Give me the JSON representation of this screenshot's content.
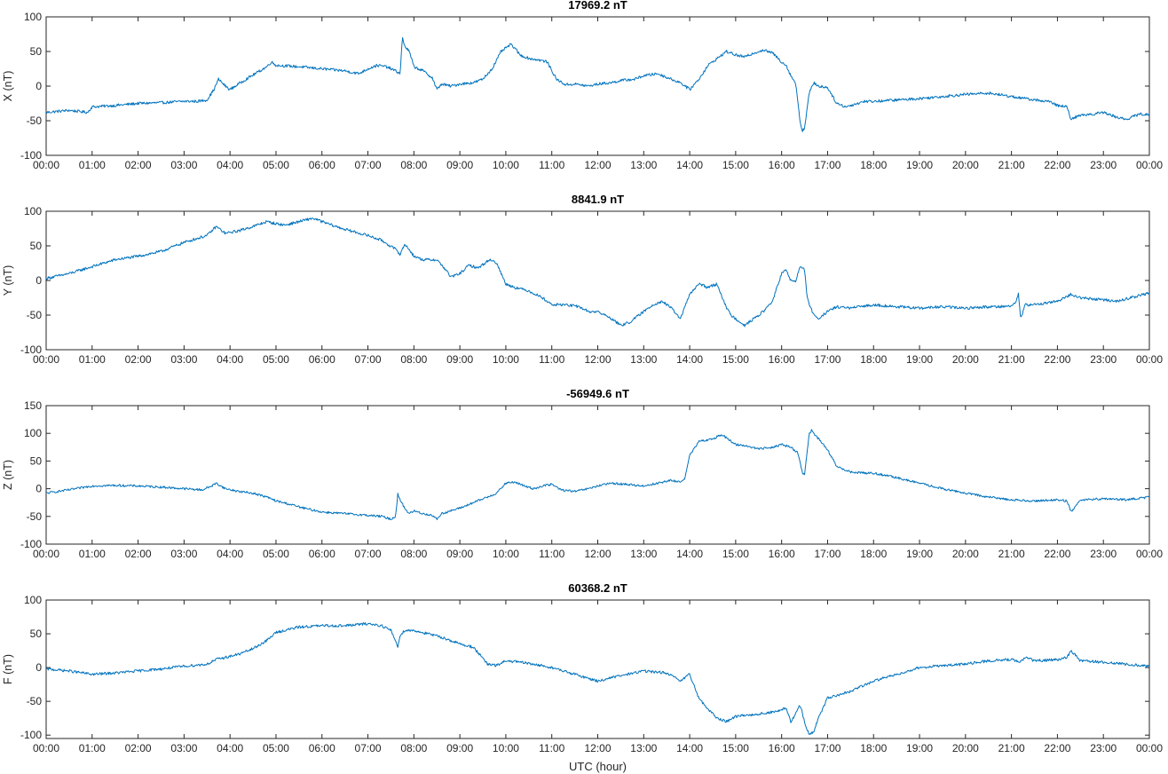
{
  "chart_data": [
    {
      "type": "line",
      "title": "17969.2 nT",
      "ylabel": "X (nT)",
      "xlabel": "",
      "xlim": [
        0,
        24
      ],
      "ylim": [
        -100,
        100
      ],
      "yticks": [
        -100,
        -50,
        0,
        50,
        100
      ],
      "xtick_labels": [
        "00:00",
        "01:00",
        "02:00",
        "03:00",
        "04:00",
        "05:00",
        "06:00",
        "07:00",
        "08:00",
        "09:00",
        "10:00",
        "11:00",
        "12:00",
        "13:00",
        "14:00",
        "15:00",
        "16:00",
        "17:00",
        "18:00",
        "19:00",
        "20:00",
        "21:00",
        "22:00",
        "23:00",
        "00:00"
      ],
      "color": "#0072BD",
      "series": [
        {
          "x": [
            0,
            0.5,
            0.9,
            1.0,
            1.5,
            2.0,
            2.5,
            3.0,
            3.3,
            3.5,
            3.65,
            3.75,
            3.9,
            4.0,
            4.3,
            4.6,
            4.8,
            4.9,
            5.0,
            5.5,
            6.0,
            6.5,
            6.8,
            7.0,
            7.2,
            7.4,
            7.6,
            7.7,
            7.75,
            7.8,
            7.9,
            8.0,
            8.2,
            8.4,
            8.5,
            8.6,
            8.8,
            9.0,
            9.3,
            9.5,
            9.7,
            9.9,
            10.1,
            10.2,
            10.3,
            10.5,
            10.7,
            10.9,
            11.1,
            11.3,
            11.5,
            11.8,
            12.0,
            12.3,
            12.5,
            12.8,
            13.0,
            13.3,
            13.6,
            13.8,
            14.0,
            14.2,
            14.4,
            14.6,
            14.8,
            15.0,
            15.2,
            15.4,
            15.6,
            15.8,
            16.0,
            16.1,
            16.2,
            16.3,
            16.35,
            16.4,
            16.45,
            16.5,
            16.6,
            16.7,
            16.8,
            17.0,
            17.2,
            17.4,
            17.5,
            17.8,
            18.0,
            18.5,
            19.0,
            19.5,
            20.0,
            20.5,
            21.0,
            21.3,
            21.5,
            21.8,
            22.0,
            22.2,
            22.3,
            22.5,
            22.8,
            23.0,
            23.3,
            23.5,
            23.8,
            24.0
          ],
          "y": [
            -38,
            -35,
            -38,
            -30,
            -28,
            -25,
            -24,
            -22,
            -22,
            -20,
            -5,
            10,
            0,
            -5,
            8,
            20,
            28,
            35,
            30,
            28,
            25,
            22,
            18,
            25,
            30,
            28,
            22,
            18,
            70,
            58,
            50,
            28,
            22,
            12,
            -5,
            3,
            0,
            3,
            5,
            10,
            25,
            50,
            60,
            55,
            45,
            40,
            38,
            35,
            10,
            2,
            3,
            0,
            3,
            5,
            8,
            10,
            15,
            18,
            10,
            5,
            -5,
            10,
            30,
            40,
            50,
            45,
            42,
            48,
            52,
            48,
            35,
            30,
            15,
            5,
            -20,
            -50,
            -65,
            -60,
            -10,
            5,
            0,
            -2,
            -25,
            -30,
            -28,
            -22,
            -22,
            -20,
            -18,
            -15,
            -12,
            -10,
            -15,
            -18,
            -20,
            -22,
            -28,
            -30,
            -48,
            -42,
            -40,
            -38,
            -45,
            -48,
            -40,
            -42
          ]
        }
      ]
    },
    {
      "type": "line",
      "title": "8841.9 nT",
      "ylabel": "Y (nT)",
      "xlabel": "",
      "xlim": [
        0,
        24
      ],
      "ylim": [
        -100,
        100
      ],
      "yticks": [
        -100,
        -50,
        0,
        50,
        100
      ],
      "xtick_labels": [
        "00:00",
        "01:00",
        "02:00",
        "03:00",
        "04:00",
        "05:00",
        "06:00",
        "07:00",
        "08:00",
        "09:00",
        "10:00",
        "11:00",
        "12:00",
        "13:00",
        "14:00",
        "15:00",
        "16:00",
        "17:00",
        "18:00",
        "19:00",
        "20:00",
        "21:00",
        "22:00",
        "23:00",
        "00:00"
      ],
      "color": "#0072BD",
      "series": [
        {
          "x": [
            0,
            0.5,
            1.0,
            1.5,
            2.0,
            2.5,
            3.0,
            3.5,
            3.7,
            3.9,
            4.2,
            4.5,
            4.8,
            5.0,
            5.2,
            5.5,
            5.8,
            6.0,
            6.3,
            6.6,
            7.0,
            7.3,
            7.6,
            7.7,
            7.8,
            7.9,
            8.0,
            8.2,
            8.5,
            8.7,
            8.8,
            9.0,
            9.2,
            9.4,
            9.6,
            9.7,
            9.8,
            10.0,
            10.2,
            10.5,
            10.8,
            11.0,
            11.3,
            11.6,
            11.8,
            12.0,
            12.3,
            12.5,
            12.7,
            13.0,
            13.2,
            13.4,
            13.6,
            13.8,
            14.0,
            14.2,
            14.4,
            14.6,
            14.8,
            14.9,
            15.0,
            15.2,
            15.4,
            15.6,
            15.8,
            16.0,
            16.1,
            16.2,
            16.3,
            16.4,
            16.5,
            16.55,
            16.6,
            16.7,
            16.8,
            17.0,
            17.2,
            17.5,
            18.0,
            18.5,
            19.0,
            19.5,
            20.0,
            20.5,
            21.0,
            21.1,
            21.15,
            21.2,
            21.3,
            21.5,
            22.0,
            22.3,
            22.5,
            23.0,
            23.3,
            23.6,
            24.0
          ],
          "y": [
            3,
            10,
            20,
            30,
            35,
            42,
            55,
            65,
            78,
            68,
            72,
            78,
            85,
            82,
            80,
            85,
            90,
            85,
            78,
            72,
            65,
            58,
            45,
            38,
            52,
            45,
            35,
            30,
            30,
            15,
            5,
            10,
            22,
            18,
            28,
            30,
            25,
            -5,
            -10,
            -15,
            -25,
            -35,
            -35,
            -38,
            -45,
            -45,
            -55,
            -65,
            -60,
            -45,
            -35,
            -30,
            -40,
            -55,
            -20,
            -5,
            -10,
            -5,
            -40,
            -50,
            -55,
            -65,
            -55,
            -45,
            -30,
            10,
            15,
            0,
            -2,
            20,
            15,
            -20,
            -35,
            -50,
            -55,
            -45,
            -38,
            -40,
            -35,
            -38,
            -40,
            -38,
            -40,
            -38,
            -37,
            -30,
            -20,
            -55,
            -35,
            -35,
            -30,
            -20,
            -25,
            -28,
            -30,
            -25,
            -18
          ]
        }
      ]
    },
    {
      "type": "line",
      "title": "-56949.6 nT",
      "ylabel": "Z (nT)",
      "xlabel": "",
      "xlim": [
        0,
        24
      ],
      "ylim": [
        -100,
        150
      ],
      "yticks": [
        -100,
        -50,
        0,
        50,
        100,
        150
      ],
      "xtick_labels": [
        "00:00",
        "01:00",
        "02:00",
        "03:00",
        "04:00",
        "05:00",
        "06:00",
        "07:00",
        "08:00",
        "09:00",
        "10:00",
        "11:00",
        "12:00",
        "13:00",
        "14:00",
        "15:00",
        "16:00",
        "17:00",
        "18:00",
        "19:00",
        "20:00",
        "21:00",
        "22:00",
        "23:00",
        "00:00"
      ],
      "color": "#0072BD",
      "series": [
        {
          "x": [
            0,
            0.5,
            1.0,
            1.5,
            2.0,
            2.5,
            3.0,
            3.4,
            3.6,
            3.7,
            3.9,
            4.2,
            4.5,
            4.8,
            5.0,
            5.3,
            5.6,
            6.0,
            6.5,
            7.0,
            7.3,
            7.5,
            7.6,
            7.65,
            7.7,
            7.8,
            7.9,
            8.0,
            8.2,
            8.4,
            8.5,
            8.6,
            8.8,
            9.0,
            9.3,
            9.6,
            9.8,
            10.0,
            10.2,
            10.4,
            10.6,
            10.8,
            11.0,
            11.2,
            11.5,
            11.8,
            12.0,
            12.3,
            12.6,
            13.0,
            13.3,
            13.6,
            13.8,
            13.9,
            14.0,
            14.2,
            14.5,
            14.7,
            14.9,
            15.0,
            15.2,
            15.5,
            15.8,
            16.0,
            16.2,
            16.35,
            16.45,
            16.5,
            16.6,
            16.65,
            16.7,
            16.8,
            17.0,
            17.2,
            17.5,
            18.0,
            18.5,
            19.0,
            19.5,
            20.0,
            20.5,
            21.0,
            21.5,
            22.0,
            22.2,
            22.3,
            22.5,
            23.0,
            23.5,
            24.0
          ],
          "y": [
            -8,
            -2,
            5,
            6,
            5,
            3,
            0,
            -2,
            5,
            10,
            0,
            -5,
            -8,
            -15,
            -22,
            -28,
            -35,
            -42,
            -45,
            -48,
            -50,
            -55,
            -50,
            -10,
            -20,
            -35,
            -45,
            -40,
            -45,
            -48,
            -55,
            -45,
            -40,
            -35,
            -25,
            -15,
            -8,
            10,
            12,
            5,
            0,
            5,
            8,
            -2,
            -5,
            0,
            5,
            10,
            8,
            5,
            10,
            15,
            12,
            20,
            60,
            85,
            90,
            98,
            85,
            80,
            78,
            72,
            75,
            80,
            75,
            65,
            30,
            25,
            100,
            105,
            100,
            90,
            70,
            40,
            30,
            28,
            20,
            10,
            0,
            -8,
            -15,
            -20,
            -22,
            -20,
            -22,
            -42,
            -20,
            -18,
            -20,
            -15
          ]
        }
      ]
    },
    {
      "type": "line",
      "title": "60368.2 nT",
      "ylabel": "F (nT)",
      "xlabel": "UTC (hour)",
      "xlim": [
        0,
        24
      ],
      "ylim": [
        -105,
        100
      ],
      "yticks": [
        -100,
        -50,
        0,
        50,
        100
      ],
      "xtick_labels": [
        "00:00",
        "01:00",
        "02:00",
        "03:00",
        "04:00",
        "05:00",
        "06:00",
        "07:00",
        "08:00",
        "09:00",
        "10:00",
        "11:00",
        "12:00",
        "13:00",
        "14:00",
        "15:00",
        "16:00",
        "17:00",
        "18:00",
        "19:00",
        "20:00",
        "21:00",
        "22:00",
        "23:00",
        "00:00"
      ],
      "color": "#0072BD",
      "series": [
        {
          "x": [
            0,
            0.5,
            1.0,
            1.5,
            2.0,
            2.5,
            3.0,
            3.5,
            3.7,
            3.9,
            4.2,
            4.5,
            4.8,
            5.0,
            5.5,
            6.0,
            6.5,
            7.0,
            7.3,
            7.5,
            7.6,
            7.65,
            7.7,
            7.8,
            8.0,
            8.3,
            8.6,
            9.0,
            9.3,
            9.6,
            9.8,
            10.0,
            10.3,
            10.6,
            11.0,
            11.5,
            12.0,
            12.3,
            12.5,
            13.0,
            13.5,
            13.8,
            14.0,
            14.2,
            14.4,
            14.6,
            14.8,
            15.0,
            15.3,
            15.6,
            15.9,
            16.1,
            16.2,
            16.3,
            16.4,
            16.5,
            16.6,
            16.7,
            16.8,
            17.0,
            17.2,
            17.5,
            18.0,
            18.5,
            19.0,
            19.5,
            20.0,
            20.5,
            21.0,
            21.2,
            21.3,
            21.5,
            22.0,
            22.2,
            22.3,
            22.5,
            23.0,
            23.5,
            24.0
          ],
          "y": [
            -2,
            -5,
            -10,
            -8,
            -5,
            -2,
            2,
            5,
            12,
            15,
            20,
            28,
            40,
            52,
            60,
            62,
            62,
            65,
            62,
            55,
            40,
            30,
            48,
            55,
            55,
            50,
            45,
            35,
            30,
            5,
            3,
            10,
            8,
            5,
            0,
            -10,
            -20,
            -15,
            -12,
            -5,
            -8,
            -20,
            -10,
            -45,
            -62,
            -75,
            -80,
            -72,
            -70,
            -68,
            -65,
            -60,
            -80,
            -70,
            -55,
            -80,
            -100,
            -95,
            -75,
            -45,
            -42,
            -35,
            -20,
            -10,
            0,
            3,
            5,
            10,
            12,
            8,
            15,
            10,
            12,
            15,
            25,
            10,
            8,
            5,
            2
          ]
        }
      ]
    }
  ]
}
